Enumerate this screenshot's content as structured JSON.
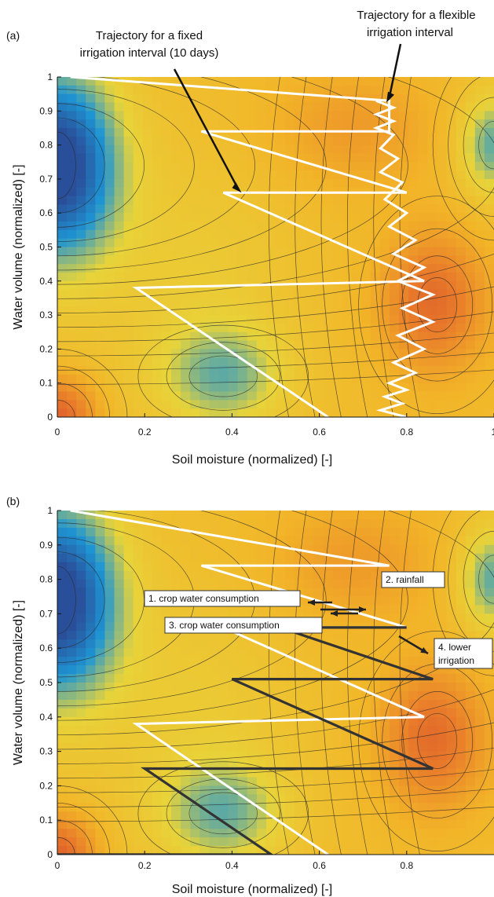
{
  "chart_data": [
    {
      "type": "contour",
      "panel_label": "(a)",
      "xlabel": "Soil moisture (normalized)  [-]",
      "ylabel": "Water volume  (normalized)  [-]",
      "xlim": [
        0,
        1
      ],
      "ylim": [
        0,
        1
      ],
      "x_ticks": [
        "0",
        "0.2",
        "0.4",
        "0.6",
        "0.8",
        "1"
      ],
      "y_ticks": [
        "0",
        "0.1",
        "0.2",
        "0.3",
        "0.4",
        "0.5",
        "0.6",
        "0.7",
        "0.8",
        "0.9",
        "1"
      ],
      "colormap": [
        "#2a4f9a",
        "#1e96d4",
        "#e8d43a",
        "#f2b428",
        "#e97c2a",
        "#d2452a"
      ],
      "annotations": [
        {
          "text_lines": [
            "Trajectory for a fixed",
            "irrigation interval (10 days)"
          ],
          "arrow_to": [
            0.42,
            0.66
          ]
        },
        {
          "text_lines": [
            "Trajectory for a flexible",
            "irrigation interval"
          ],
          "arrow_to": [
            0.75,
            0.92
          ]
        }
      ],
      "series": [
        {
          "color": "#ffffff",
          "x": [
            0.03,
            0.76,
            0.76,
            0.33,
            0.33,
            0.8,
            0.8,
            0.38,
            0.38,
            0.84,
            0.84,
            0.18,
            0.18,
            0.62
          ],
          "y": [
            1.0,
            0.93,
            0.84,
            0.84,
            0.84,
            0.66,
            0.66,
            0.66,
            0.66,
            0.4,
            0.4,
            0.38,
            0.38,
            0.0
          ]
        },
        {
          "color": "#ffffff",
          "x": [
            0.73,
            0.77,
            0.73,
            0.77,
            0.73,
            0.77,
            0.74,
            0.78,
            0.74,
            0.79,
            0.75,
            0.8,
            0.76,
            0.82,
            0.77,
            0.84,
            0.78,
            0.86,
            0.79,
            0.86,
            0.78,
            0.84,
            0.77,
            0.82,
            0.76,
            0.8,
            0.75,
            0.79,
            0.74,
            0.8
          ],
          "y": [
            0.93,
            0.91,
            0.89,
            0.87,
            0.85,
            0.83,
            0.79,
            0.76,
            0.72,
            0.69,
            0.64,
            0.6,
            0.56,
            0.52,
            0.48,
            0.44,
            0.4,
            0.36,
            0.32,
            0.28,
            0.24,
            0.2,
            0.16,
            0.13,
            0.1,
            0.08,
            0.06,
            0.04,
            0.02,
            0.0
          ]
        }
      ]
    },
    {
      "type": "contour",
      "panel_label": "(b)",
      "xlabel": "Soil moisture (normalized)  [-]",
      "ylabel": "Water volume  (normalized)  [-]",
      "xlim": [
        0,
        1
      ],
      "ylim": [
        0,
        1
      ],
      "x_ticks": [
        "0",
        "0.2",
        "0.4",
        "0.6",
        "0.8"
      ],
      "y_ticks": [
        "0",
        "0.1",
        "0.2",
        "0.3",
        "0.4",
        "0.5",
        "0.6",
        "0.7",
        "0.8",
        "0.9",
        "1"
      ],
      "colormap": [
        "#2a4f9a",
        "#1e96d4",
        "#e8d43a",
        "#f2b428",
        "#e97c2a",
        "#d2452a"
      ],
      "annotations": [
        {
          "text": "1. crop water consumption",
          "at": [
            0.2,
            0.7
          ]
        },
        {
          "text": "2. rainfall",
          "at": [
            0.75,
            0.71
          ]
        },
        {
          "text": "3. crop water consumption",
          "at": [
            0.25,
            0.62
          ]
        },
        {
          "text_lines": [
            "4. lower",
            "irrigation"
          ],
          "at": [
            0.88,
            0.54
          ]
        }
      ],
      "series": [
        {
          "color": "#ffffff",
          "x": [
            0.03,
            0.76,
            0.76,
            0.33,
            0.33,
            0.8,
            0.8,
            0.38,
            0.38,
            0.84,
            0.84,
            0.18,
            0.18,
            0.62
          ],
          "y": [
            1.0,
            0.84,
            0.84,
            0.84,
            0.84,
            0.66,
            0.66,
            0.66,
            0.66,
            0.4,
            0.4,
            0.38,
            0.38,
            0.0
          ]
        },
        {
          "color": "#333333",
          "x": [
            0.8,
            0.51,
            0.51,
            0.86,
            0.86,
            0.4,
            0.4,
            0.86,
            0.86,
            0.2,
            0.2,
            0.49,
            0.0
          ],
          "y": [
            0.66,
            0.66,
            0.66,
            0.51,
            0.51,
            0.51,
            0.51,
            0.25,
            0.25,
            0.25,
            0.25,
            0.0,
            0.0
          ]
        }
      ]
    }
  ]
}
